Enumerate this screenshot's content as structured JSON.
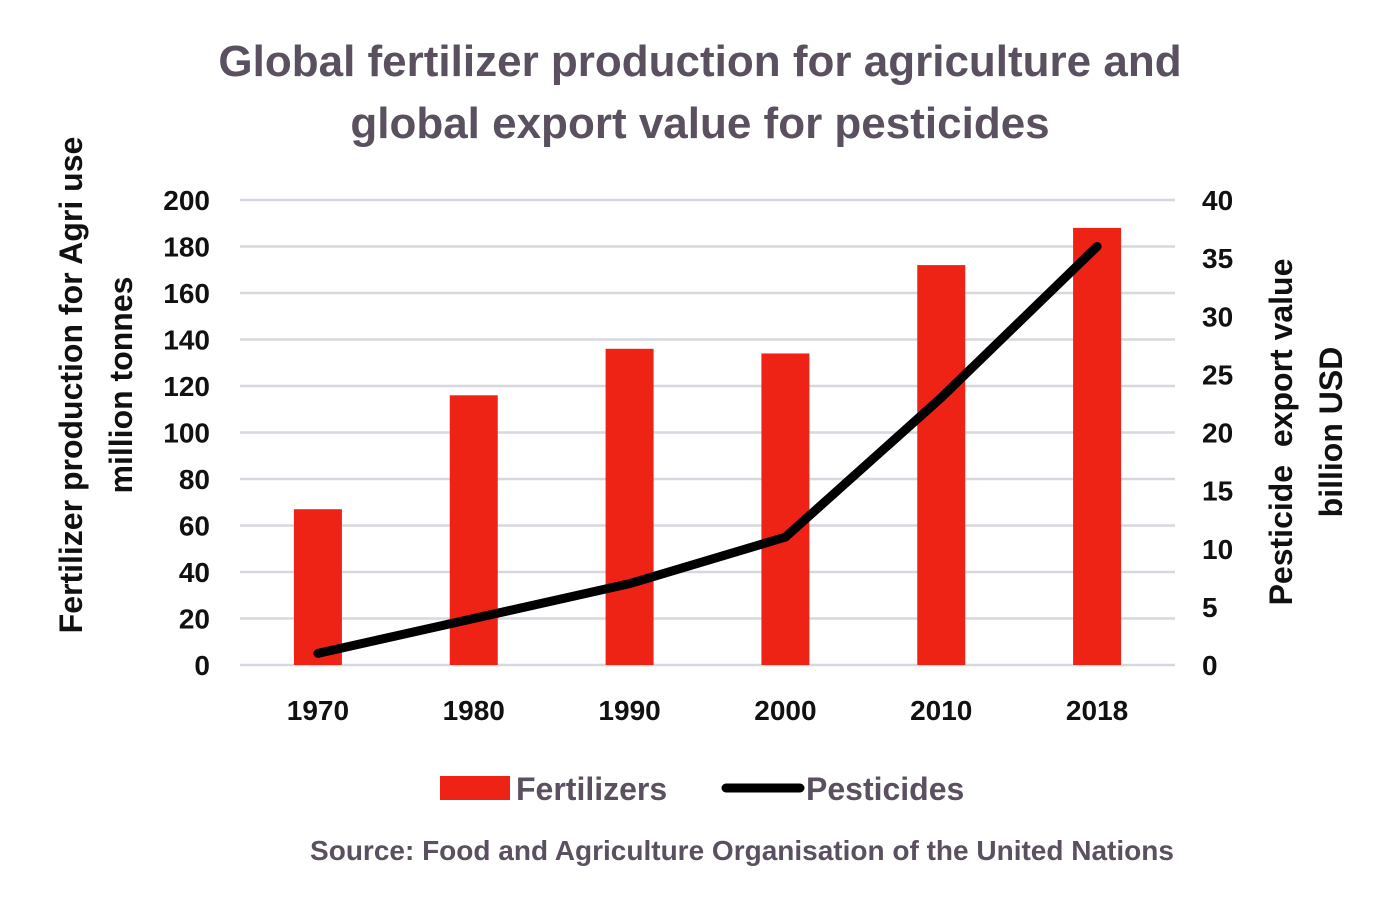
{
  "chart_data": {
    "type": "bar+line",
    "title": [
      "Global fertilizer production for agriculture and",
      "global export value for pesticides"
    ],
    "categories": [
      "1970",
      "1980",
      "1990",
      "2000",
      "2010",
      "2018"
    ],
    "series": [
      {
        "name": "Fertilizers",
        "type": "bar",
        "axis": "left",
        "color": "#ee2316",
        "values": [
          67,
          116,
          136,
          134,
          172,
          188
        ]
      },
      {
        "name": "Pesticides",
        "type": "line",
        "axis": "right",
        "color": "#000000",
        "values": [
          1,
          4,
          7,
          11,
          23,
          36
        ]
      }
    ],
    "ylabel_left": [
      "Fertilizer production for Agri use",
      "million tonnes"
    ],
    "ylabel_right": [
      "Pesticide  export value",
      "billion USD"
    ],
    "ylim_left": [
      0,
      200
    ],
    "ylim_right": [
      0,
      40
    ],
    "yticks_left": [
      "0",
      "20",
      "40",
      "60",
      "80",
      "100",
      "120",
      "140",
      "160",
      "180",
      "200"
    ],
    "yticks_right": [
      "0",
      "5",
      "10",
      "15",
      "20",
      "25",
      "30",
      "35",
      "40"
    ],
    "grid": true,
    "legend_placement": "bottom",
    "source": "Source: Food and Agriculture Organisation of the United Nations",
    "colors": {
      "title": "#5a5060",
      "source": "#5a5060",
      "grid": "#d5d8de"
    }
  }
}
